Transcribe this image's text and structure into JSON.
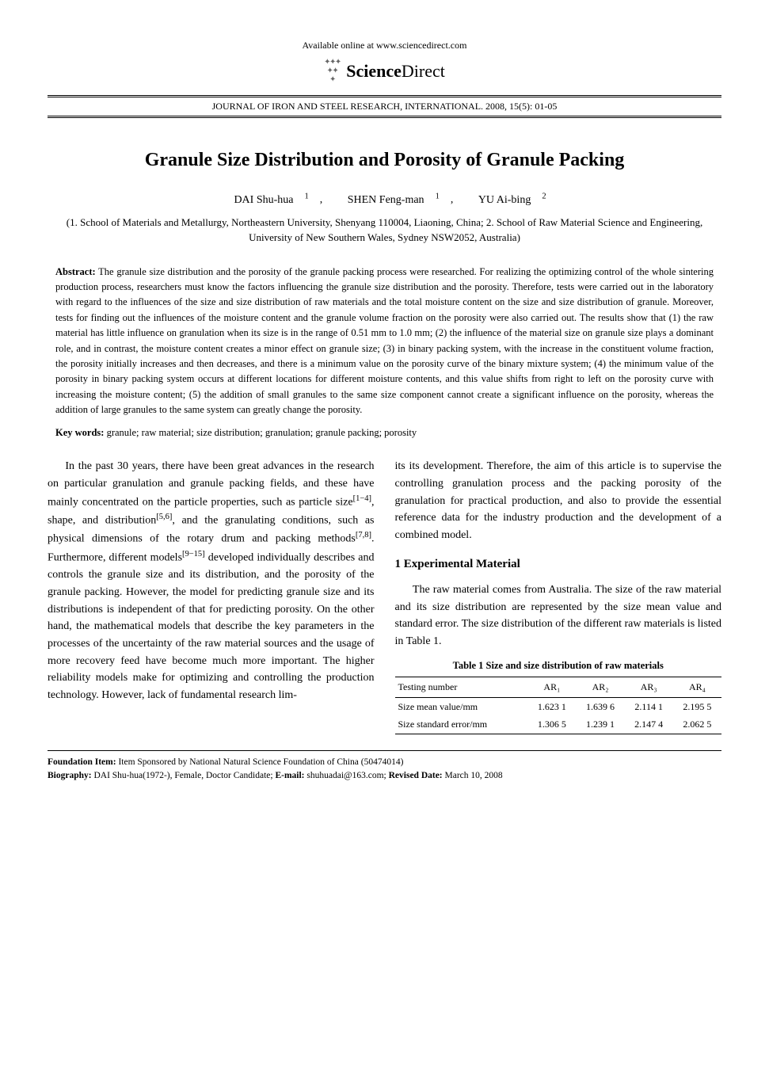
{
  "header": {
    "online_text": "Available online at www.sciencedirect.com",
    "brand_bold": "Science",
    "brand_light": "Direct",
    "journal_line": "JOURNAL OF IRON AND STEEL RESEARCH, INTERNATIONAL. 2008, 15(5): 01-05"
  },
  "title": "Granule Size Distribution and Porosity of Granule Packing",
  "authors": {
    "a1": "DAI Shu-hua",
    "a1_sup": "1",
    "a2": "SHEN Feng-man",
    "a2_sup": "1",
    "a3": "YU Ai-bing",
    "a3_sup": "2"
  },
  "affiliations": "(1. School of Materials and Metallurgy, Northeastern University, Shenyang 110004, Liaoning, China;    2. School of Raw Material Science and Engineering, University of New Southern Wales, Sydney NSW2052, Australia)",
  "abstract": {
    "label": "Abstract:",
    "text": "The granule size distribution and the porosity of the granule packing process were researched. For realizing the optimizing control of the whole sintering production process, researchers must know the factors influencing the granule size distribution and the porosity. Therefore, tests were carried out in the laboratory with regard to the influences of the size and size distribution of raw materials and the total moisture content on the size and size distribution of granule. Moreover, tests for finding out the influences of the moisture content and the granule volume fraction on the porosity were also carried out. The results show that (1) the raw material has little influence on granulation when its size is in the range of 0.51 mm to 1.0 mm; (2) the influence of the material size on granule size plays a dominant role, and in contrast, the moisture content creates a minor effect on granule size; (3) in binary packing system, with the increase in the constituent volume fraction, the porosity initially increases and then decreases, and there is a minimum value on the porosity curve of the binary mixture system; (4) the minimum value of the porosity in binary packing system occurs at different locations for different moisture contents, and this value shifts from right to left on the porosity curve with increasing the moisture content; (5) the addition of small granules to the same size component cannot create a significant influence on the porosity, whereas the addition of large granules to the same system can greatly change the porosity."
  },
  "keywords": {
    "label": "Key words:",
    "text": "granule; raw material; size distribution; granulation; granule packing; porosity"
  },
  "body": {
    "left_p1": "In the past 30 years, there have been great advances in the research on particular granulation and granule packing fields, and these have mainly concentrated on the particle properties, such as particle size",
    "left_p1_ref1": "[1−4]",
    "left_p1_b": ", shape, and distribution",
    "left_p1_ref2": "[5,6]",
    "left_p1_c": ", and the granulating conditions, such as physical dimensions of the rotary drum and packing methods",
    "left_p1_ref3": "[7,8]",
    "left_p1_d": ". Furthermore, different models",
    "left_p1_ref4": "[9−15]",
    "left_p1_e": " developed individually describes and controls the granule size and its distribution, and the porosity of the granule packing. However, the model for predicting granule size and its distributions is independent of that for predicting porosity. On the other hand, the mathematical models that describe the key parameters in the processes of the uncertainty of the raw material sources and the usage of more recovery feed have become much more important. The higher reliability models make for optimizing and controlling the production technology. However, lack of fundamental research lim-",
    "right_p1": "its its development. Therefore, the aim of this article is to supervise the controlling granulation process and the packing porosity of the granulation for practical production, and also to provide the essential reference data for the industry production and the development of a combined model.",
    "section1": "1   Experimental Material",
    "right_p2": "The raw material comes from Australia. The size of the raw material and its size distribution are represented by the size mean value and standard error. The size distribution of the different raw materials is listed in Table 1."
  },
  "table1": {
    "caption": "Table 1   Size and size distribution of raw materials",
    "columns": [
      "Testing number",
      "AR₁",
      "AR₂",
      "AR₃",
      "AR₄"
    ],
    "rows": [
      [
        "Size mean value/mm",
        "1.623 1",
        "1.639 6",
        "2.114 1",
        "2.195 5"
      ],
      [
        "Size standard error/mm",
        "1.306 5",
        "1.239 1",
        "2.147 4",
        "2.062 5"
      ]
    ]
  },
  "footnotes": {
    "foundation_label": "Foundation Item:",
    "foundation_text": "Item Sponsored by National Natural Science Foundation of China (50474014)",
    "biography_label": "Biography:",
    "biography_text": "DAI Shu-hua(1972-), Female, Doctor Candidate;    ",
    "email_label": "E-mail:",
    "email_text": " shuhuadai@163.com;    ",
    "revised_label": "Revised Date:",
    "revised_text": " March 10, 2008"
  }
}
